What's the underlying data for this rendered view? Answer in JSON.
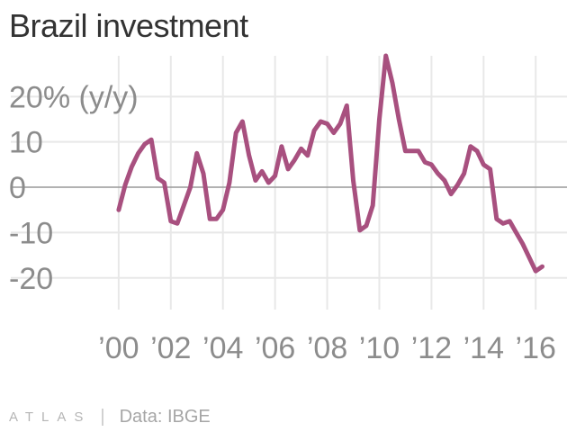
{
  "title": "Brazil investment",
  "footer": {
    "logo": "ATLAS",
    "separator": "|",
    "source": "Data: IBGE"
  },
  "colors": {
    "line": "#a8507f",
    "grid": "#e8e8e8",
    "zero": "#999999",
    "text": "#8c8c8c"
  },
  "chart_data": {
    "type": "line",
    "title": "Brazil investment",
    "xlabel": "",
    "ylabel": "",
    "ylim": [
      -27,
      29
    ],
    "xlim": [
      1998.9,
      2017.2
    ],
    "grid": true,
    "y_ticks": [
      {
        "value": 20,
        "label": "20% (y/y)"
      },
      {
        "value": 10,
        "label": "10"
      },
      {
        "value": 0,
        "label": "0"
      },
      {
        "value": -10,
        "label": "-10"
      },
      {
        "value": -20,
        "label": "-20"
      }
    ],
    "x_ticks": [
      {
        "value": 2000,
        "label": "’00"
      },
      {
        "value": 2002,
        "label": "’02"
      },
      {
        "value": 2004,
        "label": "’04"
      },
      {
        "value": 2006,
        "label": "’06"
      },
      {
        "value": 2008,
        "label": "’08"
      },
      {
        "value": 2010,
        "label": "’10"
      },
      {
        "value": 2012,
        "label": "’12"
      },
      {
        "value": 2014,
        "label": "’14"
      },
      {
        "value": 2016,
        "label": "’16"
      }
    ],
    "series": [
      {
        "values": [
          [
            2000.0,
            -5.0
          ],
          [
            2000.25,
            0.5
          ],
          [
            2000.5,
            4.5
          ],
          [
            2000.75,
            7.5
          ],
          [
            2001.0,
            9.5
          ],
          [
            2001.25,
            10.5
          ],
          [
            2001.5,
            2.0
          ],
          [
            2001.75,
            1.0
          ],
          [
            2002.0,
            -7.5
          ],
          [
            2002.25,
            -8.0
          ],
          [
            2002.5,
            -4.0
          ],
          [
            2002.75,
            0.0
          ],
          [
            2003.0,
            7.5
          ],
          [
            2003.25,
            3.0
          ],
          [
            2003.5,
            -7.0
          ],
          [
            2003.75,
            -7.0
          ],
          [
            2004.0,
            -5.0
          ],
          [
            2004.25,
            1.0
          ],
          [
            2004.5,
            12.0
          ],
          [
            2004.75,
            14.5
          ],
          [
            2005.0,
            7.0
          ],
          [
            2005.25,
            1.5
          ],
          [
            2005.5,
            3.5
          ],
          [
            2005.75,
            1.0
          ],
          [
            2006.0,
            2.5
          ],
          [
            2006.25,
            9.0
          ],
          [
            2006.5,
            4.0
          ],
          [
            2006.75,
            6.0
          ],
          [
            2007.0,
            8.5
          ],
          [
            2007.25,
            7.0
          ],
          [
            2007.5,
            12.5
          ],
          [
            2007.75,
            14.5
          ],
          [
            2008.0,
            14.0
          ],
          [
            2008.25,
            12.0
          ],
          [
            2008.5,
            14.0
          ],
          [
            2008.75,
            18.0
          ],
          [
            2009.0,
            1.5
          ],
          [
            2009.25,
            -9.5
          ],
          [
            2009.5,
            -8.5
          ],
          [
            2009.75,
            -4.0
          ],
          [
            2010.0,
            15.0
          ],
          [
            2010.25,
            29.0
          ],
          [
            2010.5,
            23.0
          ],
          [
            2010.75,
            15.0
          ],
          [
            2011.0,
            8.0
          ],
          [
            2011.25,
            8.0
          ],
          [
            2011.5,
            8.0
          ],
          [
            2011.75,
            5.5
          ],
          [
            2012.0,
            5.0
          ],
          [
            2012.25,
            3.0
          ],
          [
            2012.5,
            1.5
          ],
          [
            2012.75,
            -1.5
          ],
          [
            2013.0,
            0.5
          ],
          [
            2013.25,
            3.0
          ],
          [
            2013.5,
            9.0
          ],
          [
            2013.75,
            8.0
          ],
          [
            2014.0,
            5.0
          ],
          [
            2014.25,
            4.0
          ],
          [
            2014.5,
            -7.0
          ],
          [
            2014.75,
            -8.0
          ],
          [
            2015.0,
            -7.5
          ],
          [
            2015.25,
            -10.0
          ],
          [
            2015.5,
            -12.5
          ],
          [
            2015.75,
            -15.5
          ],
          [
            2016.0,
            -18.5
          ],
          [
            2016.25,
            -17.5
          ]
        ]
      }
    ]
  }
}
